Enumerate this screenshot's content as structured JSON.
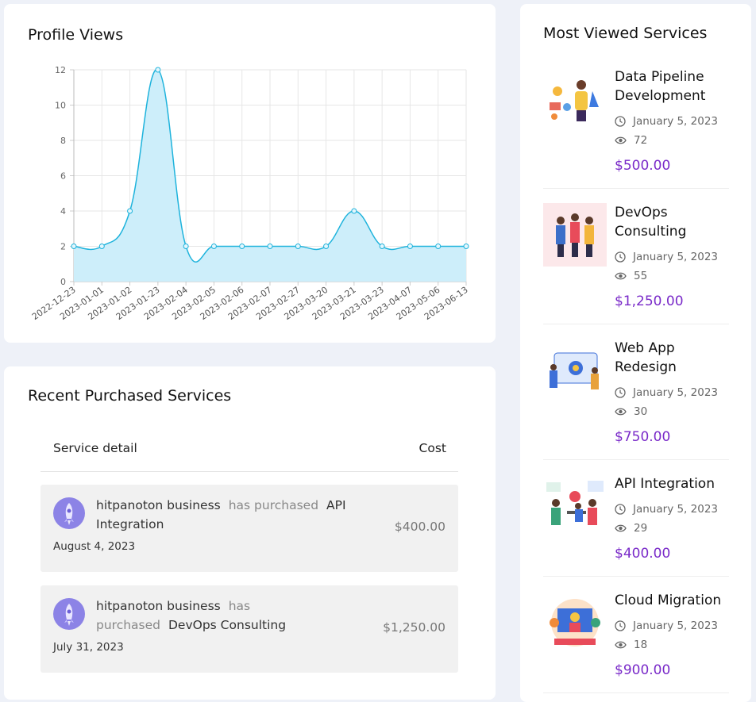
{
  "chart_data": {
    "type": "line",
    "title": "Profile Views",
    "categories": [
      "2022-12-23",
      "2023-01-01",
      "2023-01-02",
      "2023-01-23",
      "2023-02-04",
      "2023-02-05",
      "2023-02-06",
      "2023-02-07",
      "2023-02-27",
      "2023-03-20",
      "2023-03-21",
      "2023-03-23",
      "2023-04-07",
      "2023-05-06",
      "2023-06-13"
    ],
    "values": [
      2,
      2,
      4,
      12,
      2,
      2,
      2,
      2,
      2,
      2,
      4,
      2,
      2,
      2,
      2
    ],
    "color": "#1eb3dc",
    "fill": "#cdeefa",
    "ylim": [
      0,
      12
    ],
    "yticks": [
      0,
      2,
      4,
      6,
      8,
      10,
      12
    ],
    "grid": true
  },
  "recent_purchases": {
    "title": "Recent Purchased Services",
    "headers": [
      "Service detail",
      "Cost"
    ],
    "items": [
      {
        "buyer": "hitpanoton business",
        "action": "has purchased",
        "service": "API Integration",
        "date": "August 4, 2023",
        "cost": "$400.00"
      },
      {
        "buyer": "hitpanoton business",
        "action": "has purchased",
        "service": "DevOps Consulting",
        "date": "July 31, 2023",
        "cost": "$1,250.00"
      }
    ]
  },
  "most_viewed": {
    "title": "Most Viewed Services",
    "items": [
      {
        "name": "Data Pipeline Development",
        "date": "January 5, 2023",
        "views": 72,
        "price": "$500.00"
      },
      {
        "name": "DevOps Consulting",
        "date": "January 5, 2023",
        "views": 55,
        "price": "$1,250.00"
      },
      {
        "name": "Web App Redesign",
        "date": "January 5, 2023",
        "views": 30,
        "price": "$750.00"
      },
      {
        "name": "API Integration",
        "date": "January 5, 2023",
        "views": 29,
        "price": "$400.00"
      },
      {
        "name": "Cloud Migration",
        "date": "January 5, 2023",
        "views": 18,
        "price": "$900.00"
      }
    ]
  }
}
